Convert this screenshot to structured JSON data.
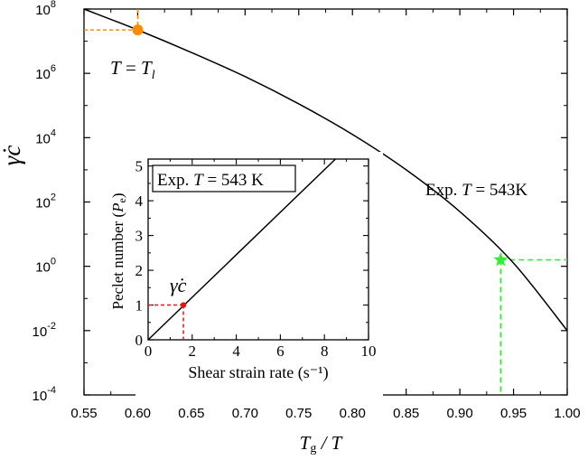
{
  "chart_data": [
    {
      "type": "line",
      "id": "main",
      "xlabel": {
        "base": "T",
        "sub": "g",
        "tail": " / T"
      },
      "ylabel": "γ̇c",
      "xlim": [
        0.55,
        1.0
      ],
      "ylim_log10": [
        -4,
        8
      ],
      "x_ticks": [
        "0.55",
        "0.60",
        "0.65",
        "0.70",
        "0.75",
        "0.80",
        "0.85",
        "0.90",
        "0.95",
        "1.00"
      ],
      "x_tick_values": [
        0.55,
        0.6,
        0.65,
        0.7,
        0.75,
        0.8,
        0.85,
        0.9,
        0.95,
        1.0
      ],
      "y_tick_exponents": [
        -4,
        -2,
        0,
        2,
        4,
        6,
        8
      ],
      "y_tick_base": "10",
      "series": [
        {
          "name": "critical shear rate curve",
          "color": "#000000",
          "x": [
            0.55,
            0.6,
            0.65,
            0.7,
            0.75,
            0.8,
            0.85,
            0.9,
            0.95,
            1.0
          ],
          "log10_y": [
            8.0,
            7.35,
            6.65,
            5.9,
            5.05,
            4.1,
            3.0,
            1.7,
            0.1,
            -2.0
          ]
        }
      ],
      "markers": [
        {
          "name": "liquidus point",
          "x": 0.6,
          "log10_y": 7.35,
          "shape": "circle",
          "color": "#ff8c00",
          "label": {
            "italic_a": "T",
            "mid": " = ",
            "italic_b": "T",
            "sub": "l"
          }
        },
        {
          "name": "experimental point",
          "x": 0.938,
          "log10_y": 0.2,
          "shape": "star",
          "color": "#33ee33",
          "label": {
            "prefix": "Exp. ",
            "italic": "T",
            "suffix": " = 543K"
          }
        }
      ]
    },
    {
      "type": "line",
      "id": "inset",
      "title_box": {
        "prefix": "Exp. ",
        "italic": "T",
        "suffix": " = 543 K"
      },
      "xlabel": "Shear strain rate (s⁻¹)",
      "ylabel": {
        "prefix": "Peclet number (",
        "italic": "P",
        "sub": "e",
        "suffix": ")"
      },
      "xlim": [
        0,
        10
      ],
      "ylim": [
        0,
        5.2
      ],
      "x_ticks": [
        0,
        2,
        4,
        6,
        8,
        10
      ],
      "y_ticks": [
        0,
        1,
        2,
        3,
        4,
        5
      ],
      "series": [
        {
          "name": "Peclet number",
          "color": "#000000",
          "x": [
            0,
            8.5
          ],
          "y": [
            0,
            5.2
          ]
        }
      ],
      "markers": [
        {
          "name": "critical rate",
          "x": 1.6,
          "y": 1.0,
          "color": "#ee1111",
          "label": "γ̇c"
        }
      ]
    }
  ],
  "colors": {
    "orange": "#ff8c00",
    "green": "#33ee33",
    "red": "#ee1111"
  }
}
